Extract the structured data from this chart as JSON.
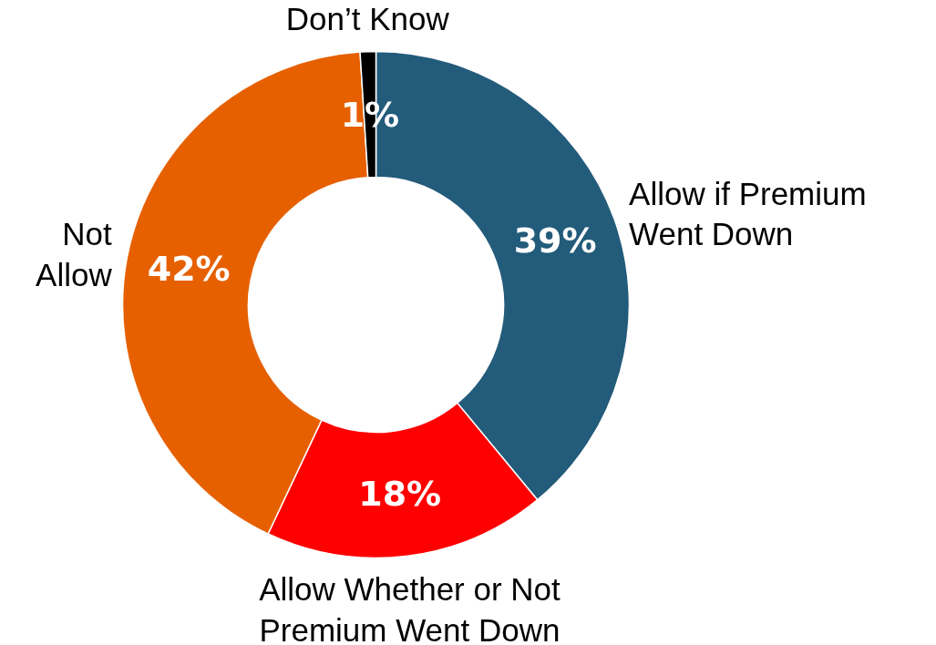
{
  "chart_data": {
    "type": "donut",
    "categories": [
      "Allow if Premium\nWent Down",
      "Allow Whether or Not\nPremium Went Down",
      "Not\nAllow",
      "Don’t Know"
    ],
    "values": [
      39,
      18,
      42,
      1
    ],
    "colors": [
      "#235b7a",
      "#ff0000",
      "#e66000",
      "#000000"
    ],
    "value_labels": [
      "39%",
      "18%",
      "42%",
      "1%"
    ]
  }
}
